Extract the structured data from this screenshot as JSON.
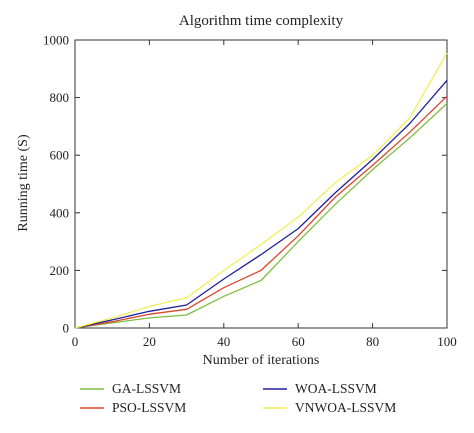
{
  "chart_data": {
    "type": "line",
    "title": "Algorithm time complexity",
    "xlabel": "Number of iterations",
    "ylabel": "Running time (S)",
    "xlim": [
      0,
      100
    ],
    "ylim": [
      0,
      1000
    ],
    "xticks": [
      0,
      20,
      40,
      60,
      80,
      100
    ],
    "yticks": [
      0,
      200,
      400,
      600,
      800,
      1000
    ],
    "grid": false,
    "legend_position": "bottom",
    "series": [
      {
        "name": "GA-LSSVM",
        "color": "#7fbf3f",
        "x": [
          0,
          10,
          20,
          30,
          40,
          50,
          60,
          70,
          80,
          90,
          100
        ],
        "values": [
          0,
          18,
          35,
          45,
          110,
          165,
          300,
          430,
          550,
          660,
          780
        ]
      },
      {
        "name": "PSO-LSSVM",
        "color": "#d9472b",
        "x": [
          0,
          10,
          20,
          30,
          40,
          50,
          60,
          70,
          80,
          90,
          100
        ],
        "values": [
          0,
          22,
          48,
          65,
          140,
          200,
          320,
          455,
          565,
          680,
          805
        ]
      },
      {
        "name": "WOA-LSSVM",
        "color": "#1f1f9a",
        "x": [
          0,
          10,
          20,
          30,
          40,
          50,
          60,
          70,
          80,
          90,
          100
        ],
        "values": [
          0,
          28,
          58,
          80,
          170,
          255,
          345,
          470,
          585,
          710,
          860
        ]
      },
      {
        "name": "VNWOA-LSSVM",
        "color": "#f2ee5a",
        "x": [
          0,
          10,
          20,
          30,
          40,
          50,
          60,
          70,
          80,
          90,
          100
        ],
        "values": [
          0,
          35,
          75,
          105,
          200,
          290,
          385,
          505,
          600,
          730,
          955
        ]
      }
    ]
  }
}
